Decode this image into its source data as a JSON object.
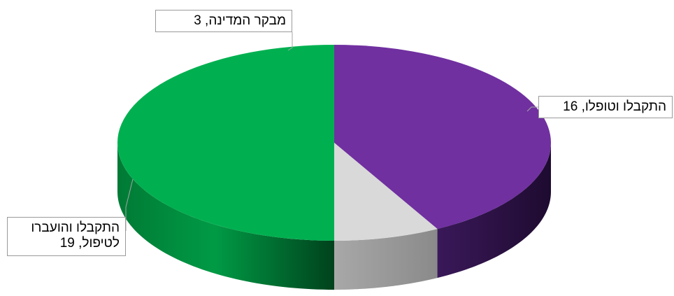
{
  "chart_data": {
    "type": "pie",
    "title": "",
    "is_3d": true,
    "slices": [
      {
        "label": "התקבלו וטופלו",
        "value": 16,
        "color": "#7030A0",
        "data_label": "התקבלו וטופלו, 16"
      },
      {
        "label": "מבקר המדינה",
        "value": 3,
        "color": "#D9D9D9",
        "data_label": "מבקר המדינה, 3"
      },
      {
        "label": "התקבלו והועברו לטיפול",
        "value": 19,
        "color": "#00B050",
        "data_label": "התקבלו והועברו לטיפול, 19"
      }
    ],
    "legend": "none"
  }
}
